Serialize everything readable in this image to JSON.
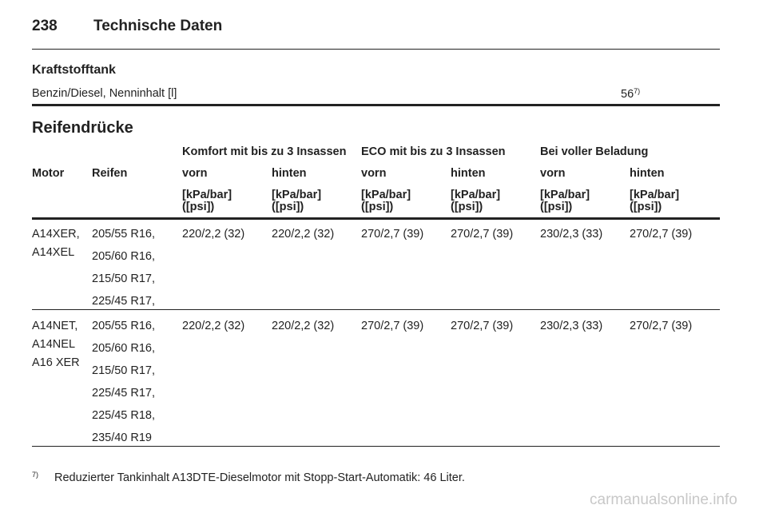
{
  "header": {
    "page_number": "238",
    "title": "Technische Daten"
  },
  "fuel_tank": {
    "heading": "Kraftstofftank",
    "label": "Benzin/Diesel, Nenninhalt [l]",
    "value": "56",
    "footnote_ref": "7)"
  },
  "tyres": {
    "heading": "Reifendrücke",
    "groups": [
      "Komfort mit bis zu 3 Insassen",
      "ECO mit bis zu 3 Insassen",
      "Bei voller Beladung"
    ],
    "columns": [
      "Motor",
      "Reifen",
      "vorn",
      "hinten",
      "vorn",
      "hinten",
      "vorn",
      "hinten"
    ],
    "unit": "[kPa/bar]\n([psi])",
    "rows": [
      {
        "motor": [
          "A14XER,",
          "A14XEL"
        ],
        "tyres": [
          "205/55 R16,",
          "205/60 R16,",
          "215/50 R17,",
          "225/45 R17,"
        ],
        "values": [
          "220/2,2 (32)",
          "220/2,2 (32)",
          "270/2,7 (39)",
          "270/2,7 (39)",
          "230/2,3 (33)",
          "270/2,7 (39)"
        ]
      },
      {
        "motor": [
          "A14NET,",
          "A14NEL",
          "A16 XER"
        ],
        "tyres": [
          "205/55 R16,",
          "205/60 R16,",
          "215/50 R17,",
          "225/45 R17,",
          "225/45 R18,",
          "235/40 R19"
        ],
        "values": [
          "220/2,2 (32)",
          "220/2,2 (32)",
          "270/2,7 (39)",
          "270/2,7 (39)",
          "230/2,3 (33)",
          "270/2,7 (39)"
        ]
      }
    ]
  },
  "footnote": {
    "marker": "7)",
    "text": "Reduzierter Tankinhalt A13DTE-Dieselmotor mit Stopp-Start-Automatik: 46 Liter."
  },
  "watermark": "carmanualsonline.info"
}
